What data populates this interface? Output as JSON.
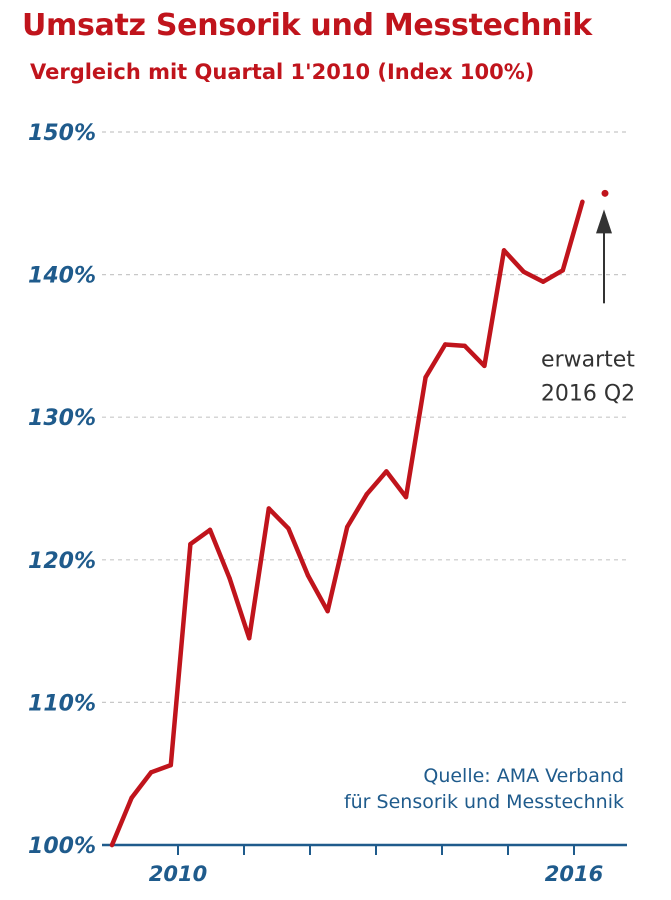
{
  "chart_data": {
    "type": "line",
    "title": "Umsatz Sensorik und Messtechnik",
    "subtitle": "Vergleich mit Quartal 1'2010 (Index 100%)",
    "ylim": [
      100,
      150
    ],
    "yticks": [
      100,
      110,
      120,
      130,
      140,
      150
    ],
    "ytick_labels": [
      "100%",
      "110%",
      "120%",
      "130%",
      "140%",
      "150%"
    ],
    "xlim": [
      2010,
      2016.25
    ],
    "xticks": [
      2010,
      2011,
      2012,
      2013,
      2014,
      2015,
      2016
    ],
    "xtick_labels": [
      "2010",
      "",
      "",
      "",
      "",
      "",
      "2016"
    ],
    "grid": true,
    "series": [
      {
        "color": "#c0141c",
        "x": [
          2010.0,
          2010.25,
          2010.5,
          2010.75,
          2011.0,
          2011.25,
          2011.5,
          2011.75,
          2012.0,
          2012.25,
          2012.5,
          2012.75,
          2013.0,
          2013.25,
          2013.5,
          2013.75,
          2014.0,
          2014.25,
          2014.5,
          2014.75,
          2015.0,
          2015.25,
          2015.5,
          2015.75,
          2016.0
        ],
        "values": [
          100.0,
          103.3,
          105.1,
          105.6,
          121.1,
          122.1,
          118.7,
          114.5,
          123.6,
          122.2,
          118.9,
          116.4,
          122.3,
          124.6,
          126.2,
          124.4,
          132.8,
          135.1,
          135.0,
          133.6,
          141.7,
          140.2,
          139.5,
          140.3,
          145.1
        ]
      }
    ],
    "expected_point": {
      "x": 2016.25,
      "value": 145.7
    },
    "annotation": {
      "line1": "erwartet",
      "line2": "2016 Q2"
    },
    "source": {
      "line1": "Quelle: AMA Verband",
      "line2": "für Sensorik und Messtechnik"
    }
  },
  "colors": {
    "title": "#c0141c",
    "line": "#c0141c",
    "axis": "#1f5b8c",
    "grid": "#c8c8c8",
    "annotation": "#333333"
  }
}
